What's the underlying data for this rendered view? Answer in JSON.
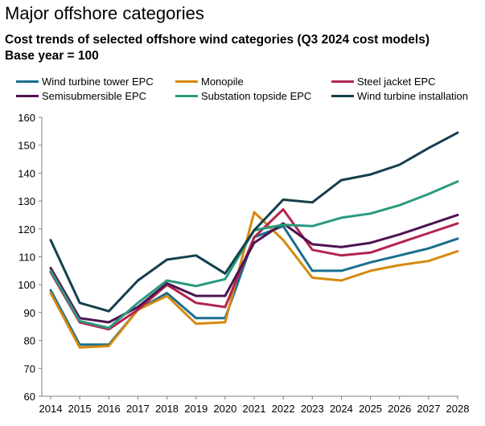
{
  "header": {
    "title": "Major offshore categories",
    "subtitle_line1": "Cost trends of selected offshore wind categories (Q3 2024 cost models)",
    "subtitle_line2": "Base year = 100"
  },
  "chart_data": {
    "type": "line",
    "title": "Cost trends of selected offshore wind categories (Q3 2024 cost models)",
    "subtitle": "Base year = 100",
    "xlabel": "",
    "ylabel": "",
    "ylim": [
      60,
      160
    ],
    "yticks": [
      60,
      70,
      80,
      90,
      100,
      110,
      120,
      130,
      140,
      150,
      160
    ],
    "grid": false,
    "legend_position": "top",
    "categories": [
      "2014",
      "2015",
      "2016",
      "2017",
      "2018",
      "2019",
      "2020",
      "2021",
      "2022",
      "2023",
      "2024",
      "2025",
      "2026",
      "2027",
      "2028"
    ],
    "series": [
      {
        "name": "Wind turbine tower EPC",
        "color": "#1a6f8e",
        "values": [
          98,
          78.5,
          78.5,
          91,
          97,
          88,
          88,
          117,
          121,
          105,
          105,
          108,
          110.5,
          113,
          116.5
        ]
      },
      {
        "name": "Monopile",
        "color": "#d68a0e",
        "values": [
          97,
          77.5,
          78,
          91,
          96,
          86,
          86.5,
          126,
          116,
          102.5,
          101.5,
          105,
          107,
          108.5,
          112
        ]
      },
      {
        "name": "Steel jacket EPC",
        "color": "#b3244e",
        "values": [
          104.5,
          86.5,
          84,
          91,
          100,
          93.5,
          92,
          117,
          127,
          112.5,
          110.5,
          111.5,
          115,
          118.5,
          122
        ]
      },
      {
        "name": "Semisubmersible EPC",
        "color": "#4e1353",
        "values": [
          106,
          88,
          86.5,
          92,
          100.5,
          96,
          96,
          115,
          122,
          114.5,
          113.5,
          115,
          118,
          121.5,
          125
        ]
      },
      {
        "name": "Substation topside EPC",
        "color": "#2a9a7e",
        "values": [
          105,
          87,
          84.5,
          93.5,
          101.5,
          99.5,
          102,
          119.5,
          121.5,
          121,
          124,
          125.5,
          128.5,
          132.5,
          137
        ]
      },
      {
        "name": "Wind turbine installation",
        "color": "#143f4b",
        "values": [
          116,
          93.5,
          90.5,
          101.5,
          109,
          110.5,
          104,
          119.5,
          130.5,
          129.5,
          137.5,
          139.5,
          143,
          149,
          154.5
        ]
      }
    ]
  }
}
